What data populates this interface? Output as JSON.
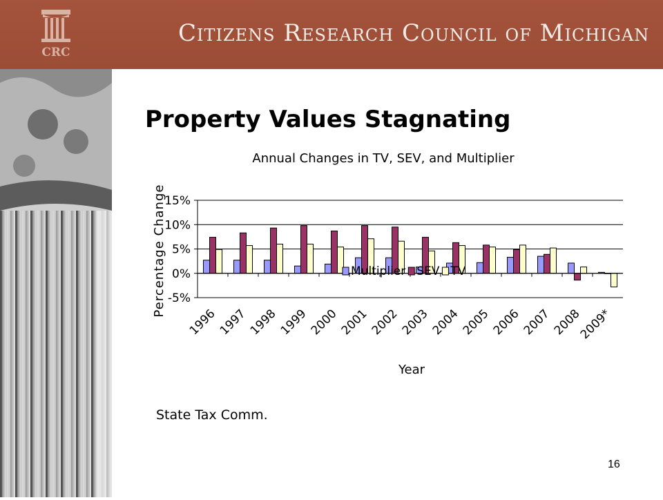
{
  "header": {
    "org_name": "Citizens Research Council of Michigan",
    "logo_text": "CRC"
  },
  "slide": {
    "title": "Property Values Stagnating",
    "source": "State Tax Comm.",
    "page_number": "16"
  },
  "colors": {
    "header_bg": "#a4533c",
    "multiplier": "#9999ff",
    "sev": "#993366",
    "tv": "#ffffcc"
  },
  "chart_data": {
    "type": "bar",
    "title": "Annual Changes in TV, SEV, and Multiplier",
    "xlabel": "Year",
    "ylabel": "Percentage Change",
    "categories": [
      "1996",
      "1997",
      "1998",
      "1999",
      "2000",
      "2001",
      "2002",
      "2003",
      "2004",
      "2005",
      "2006",
      "2007",
      "2008",
      "2009*"
    ],
    "y_ticks": [
      "15%",
      "10%",
      "5%",
      "0%",
      "-5%"
    ],
    "ylim": [
      -5,
      15
    ],
    "grid": "horizontal",
    "legend_position": "bottom",
    "series": [
      {
        "name": "Multiplier",
        "color": "#9999ff",
        "values": [
          2.7,
          2.7,
          2.7,
          1.5,
          1.9,
          3.2,
          3.2,
          1.3,
          2.1,
          2.2,
          3.3,
          3.5,
          2.1,
          0.2
        ]
      },
      {
        "name": "SEV",
        "color": "#993366",
        "values": [
          7.4,
          8.3,
          9.3,
          9.8,
          8.7,
          9.8,
          9.5,
          7.4,
          6.3,
          5.8,
          4.9,
          3.9,
          -1.4,
          0
        ]
      },
      {
        "name": "TV",
        "color": "#ffffcc",
        "values": [
          4.9,
          5.7,
          6.0,
          6.0,
          5.4,
          7.1,
          6.6,
          4.6,
          5.7,
          5.4,
          5.8,
          5.2,
          1.3,
          -2.8
        ]
      }
    ]
  }
}
